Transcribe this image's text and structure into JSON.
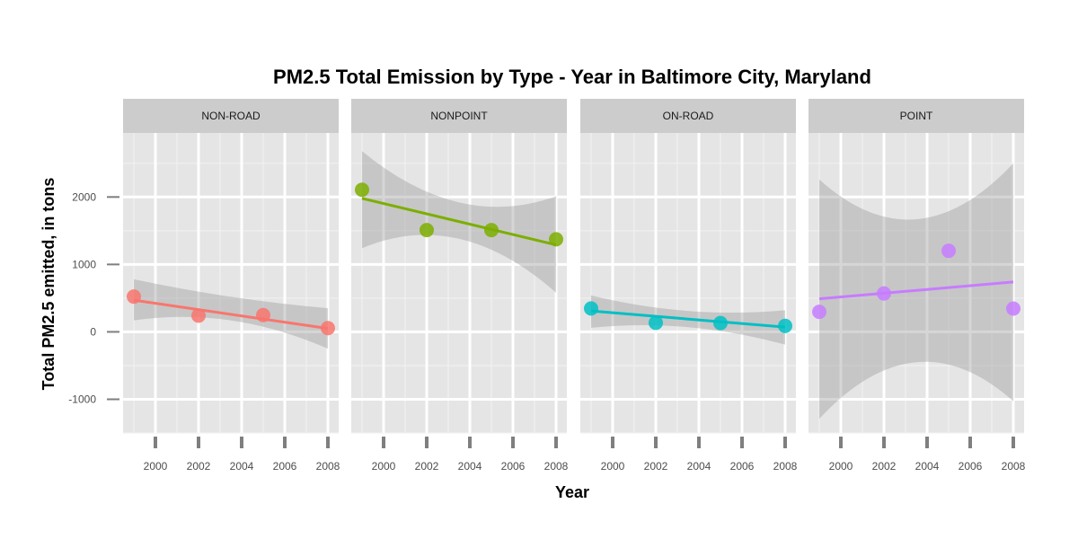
{
  "chart_data": {
    "type": "scatter",
    "title": "PM2.5 Total Emission by Type - Year in Baltimore City, Maryland",
    "xlabel": "Year",
    "ylabel": "Total PM2.5 emitted, in tons",
    "xlim": [
      1998.5,
      2008.5
    ],
    "ylim": [
      -1500,
      2950
    ],
    "x_ticks": [
      2000,
      2002,
      2004,
      2006,
      2008
    ],
    "y_ticks": [
      -1000,
      0,
      1000,
      2000
    ],
    "grid": true,
    "legend": "none",
    "panels": [
      {
        "name": "NON-ROAD",
        "color": "#F8766D",
        "x": [
          1999,
          2002,
          2005,
          2008
        ],
        "y": [
          522.9,
          240.8,
          248.9,
          55.8
        ],
        "fit": {
          "x": [
            1999,
            2008
          ],
          "y": [
            470,
            50
          ]
        },
        "band_low": [
          {
            "x": 1999,
            "y": 170
          },
          {
            "x": 2003.5,
            "y": 170
          },
          {
            "x": 2008,
            "y": -250
          }
        ],
        "band_high": [
          {
            "x": 1999,
            "y": 780
          },
          {
            "x": 2003.5,
            "y": 520
          },
          {
            "x": 2008,
            "y": 350
          }
        ]
      },
      {
        "name": "NONPOINT",
        "color": "#7CAE00",
        "x": [
          1999,
          2002,
          2005,
          2008
        ],
        "y": [
          2107.6,
          1509.5,
          1509.5,
          1373.2
        ],
        "fit": {
          "x": [
            1999,
            2008
          ],
          "y": [
            1980,
            1290
          ]
        },
        "band_low": [
          {
            "x": 1999,
            "y": 1240
          },
          {
            "x": 2003.5,
            "y": 1380
          },
          {
            "x": 2008,
            "y": 580
          }
        ],
        "band_high": [
          {
            "x": 1999,
            "y": 2680
          },
          {
            "x": 2003.5,
            "y": 1920
          },
          {
            "x": 2008,
            "y": 2010
          }
        ]
      },
      {
        "name": "ON-ROAD",
        "color": "#00BFC4",
        "x": [
          1999,
          2002,
          2005,
          2008
        ],
        "y": [
          346.8,
          134.3,
          130.4,
          88.3
        ],
        "fit": {
          "x": [
            1999,
            2008
          ],
          "y": [
            310,
            70
          ]
        },
        "band_low": [
          {
            "x": 1999,
            "y": 60
          },
          {
            "x": 2003.5,
            "y": 70
          },
          {
            "x": 2008,
            "y": -190
          }
        ],
        "band_high": [
          {
            "x": 1999,
            "y": 540
          },
          {
            "x": 2003.5,
            "y": 310
          },
          {
            "x": 2008,
            "y": 320
          }
        ]
      },
      {
        "name": "POINT",
        "color": "#C77CFF",
        "x": [
          1999,
          2002,
          2005,
          2008
        ],
        "y": [
          296.8,
          569.3,
          1202.5,
          344.98
        ],
        "fit": {
          "x": [
            1999,
            2008
          ],
          "y": [
            490,
            740
          ]
        },
        "band_low": [
          {
            "x": 1999,
            "y": -1290
          },
          {
            "x": 2003.5,
            "y": -450
          },
          {
            "x": 2008,
            "y": -1030
          }
        ],
        "band_high": [
          {
            "x": 1999,
            "y": 2260
          },
          {
            "x": 2003.5,
            "y": 1670
          },
          {
            "x": 2008,
            "y": 2500
          }
        ]
      }
    ]
  }
}
